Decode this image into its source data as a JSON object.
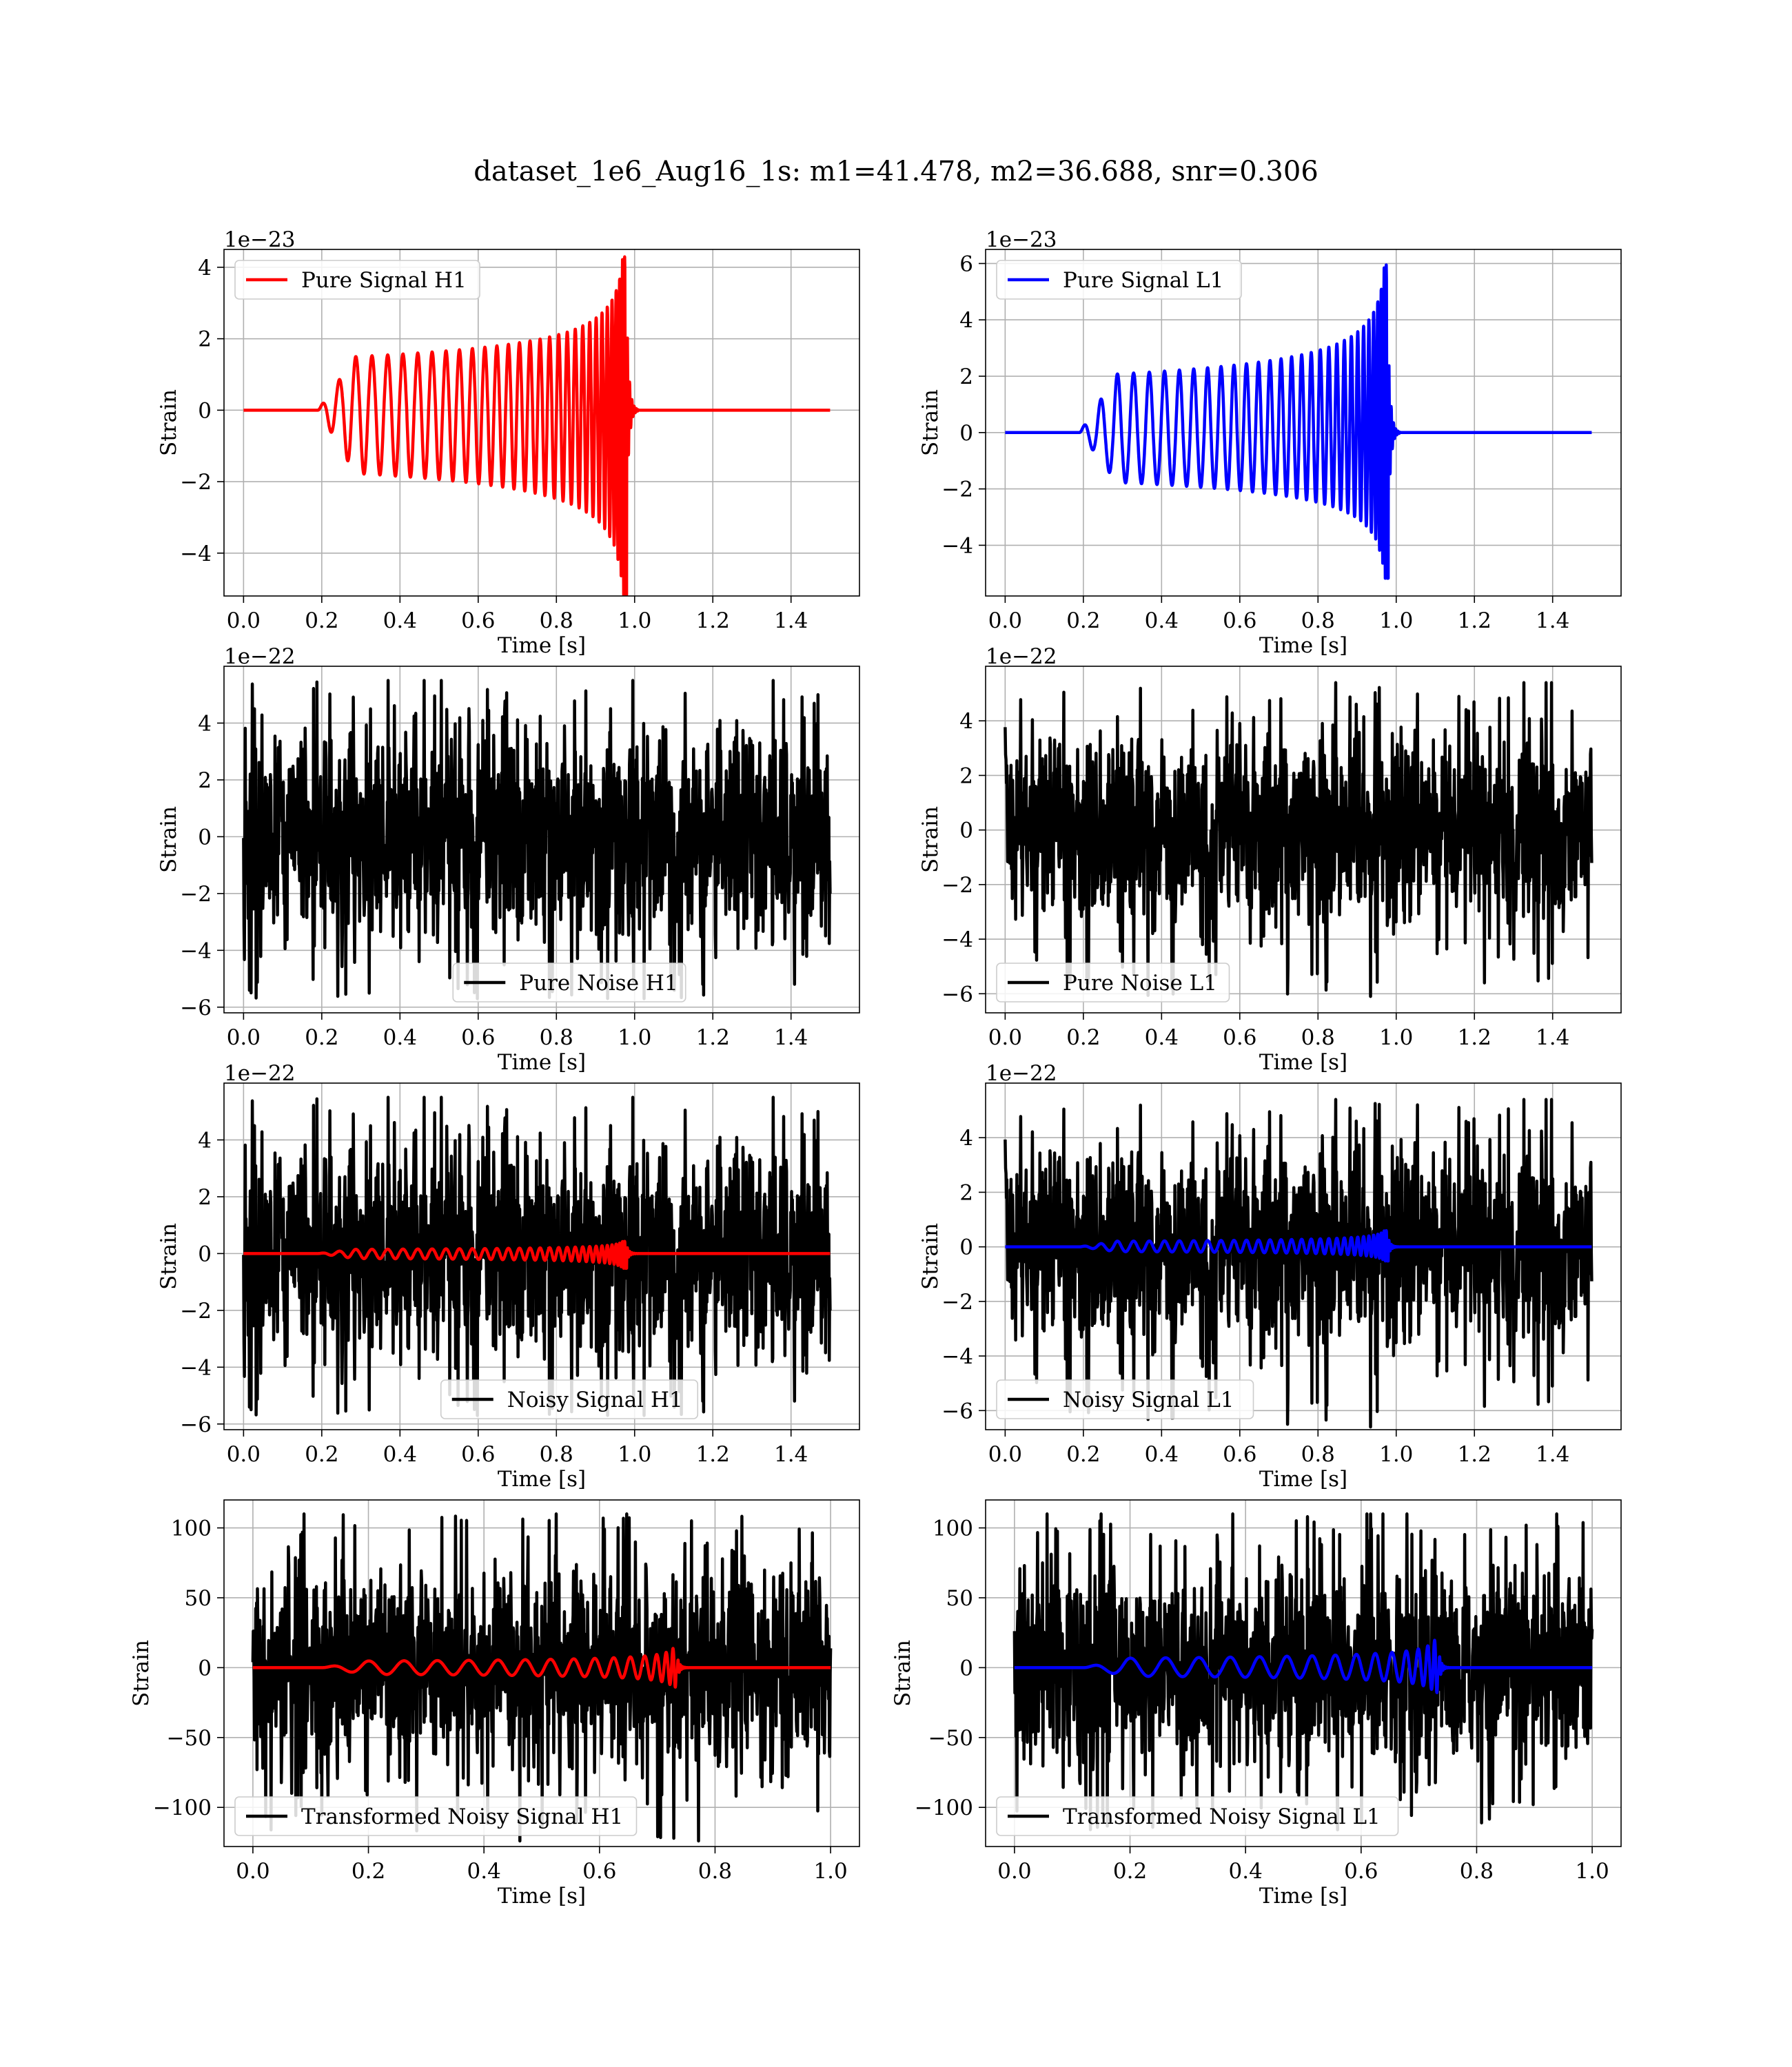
{
  "figure_title": "dataset_1e6_Aug16_1s: m1=41.478, m2=36.688, snr=0.306",
  "colors": {
    "h1": "#ff0000",
    "l1": "#0000ff",
    "noise": "#000000",
    "grid": "#b0b0b0"
  },
  "chart_data": [
    {
      "type": "line",
      "title": "",
      "xlabel": "Time [s]",
      "ylabel": "Strain",
      "offset_text": "1e−23",
      "xlim": [
        -0.05,
        1.575
      ],
      "ylim": [
        -5.2,
        4.5
      ],
      "xticks": [
        0.0,
        0.2,
        0.4,
        0.6,
        0.8,
        1.0,
        1.2,
        1.4
      ],
      "xtick_labels": [
        "0.0",
        "0.2",
        "0.4",
        "0.6",
        "0.8",
        "1.0",
        "1.2",
        "1.4"
      ],
      "yticks": [
        -4,
        -2,
        0,
        2,
        4
      ],
      "ytick_labels": [
        "−4",
        "−2",
        "0",
        "2",
        "4"
      ],
      "grid": true,
      "legend_position": "upper left",
      "series": [
        {
          "name": "Pure Signal H1",
          "color": "#ff0000",
          "kind": "chirp",
          "x_range": [
            0,
            1.5
          ],
          "amplitude_peak": 4.4,
          "amplitude_trough": -5.2,
          "merger_time": 0.98,
          "onset_time": 0.19,
          "seed": 11
        }
      ]
    },
    {
      "type": "line",
      "title": "",
      "xlabel": "Time [s]",
      "ylabel": "Strain",
      "offset_text": "1e−23",
      "xlim": [
        -0.05,
        1.575
      ],
      "ylim": [
        -5.8,
        6.5
      ],
      "xticks": [
        0.0,
        0.2,
        0.4,
        0.6,
        0.8,
        1.0,
        1.2,
        1.4
      ],
      "xtick_labels": [
        "0.0",
        "0.2",
        "0.4",
        "0.6",
        "0.8",
        "1.0",
        "1.2",
        "1.4"
      ],
      "yticks": [
        -4,
        -2,
        0,
        2,
        4,
        6
      ],
      "ytick_labels": [
        "−4",
        "−2",
        "0",
        "2",
        "4",
        "6"
      ],
      "grid": true,
      "legend_position": "upper left",
      "series": [
        {
          "name": "Pure Signal L1",
          "color": "#0000ff",
          "kind": "chirp",
          "x_range": [
            0,
            1.5
          ],
          "amplitude_peak": 6.1,
          "amplitude_trough": -5.2,
          "merger_time": 0.98,
          "onset_time": 0.19,
          "seed": 12
        }
      ]
    },
    {
      "type": "line",
      "title": "",
      "xlabel": "Time [s]",
      "ylabel": "Strain",
      "offset_text": "1e−22",
      "xlim": [
        -0.05,
        1.575
      ],
      "ylim": [
        -6.2,
        6.0
      ],
      "xticks": [
        0.0,
        0.2,
        0.4,
        0.6,
        0.8,
        1.0,
        1.2,
        1.4
      ],
      "xtick_labels": [
        "0.0",
        "0.2",
        "0.4",
        "0.6",
        "0.8",
        "1.0",
        "1.2",
        "1.4"
      ],
      "yticks": [
        -6,
        -4,
        -2,
        0,
        2,
        4
      ],
      "ytick_labels": [
        "−6",
        "−4",
        "−2",
        "0",
        "2",
        "4"
      ],
      "grid": true,
      "legend_position": "lower center",
      "series": [
        {
          "name": "Pure Noise H1",
          "color": "#000000",
          "kind": "noise",
          "x_range": [
            0,
            1.5
          ],
          "y_max": 5.5,
          "y_min": -5.7,
          "seed": 21
        }
      ]
    },
    {
      "type": "line",
      "title": "",
      "xlabel": "Time [s]",
      "ylabel": "Strain",
      "offset_text": "1e−22",
      "xlim": [
        -0.05,
        1.575
      ],
      "ylim": [
        -6.7,
        6.0
      ],
      "xticks": [
        0.0,
        0.2,
        0.4,
        0.6,
        0.8,
        1.0,
        1.2,
        1.4
      ],
      "xtick_labels": [
        "0.0",
        "0.2",
        "0.4",
        "0.6",
        "0.8",
        "1.0",
        "1.2",
        "1.4"
      ],
      "yticks": [
        -6,
        -4,
        -2,
        0,
        2,
        4
      ],
      "ytick_labels": [
        "−6",
        "−4",
        "−2",
        "0",
        "2",
        "4"
      ],
      "grid": true,
      "legend_position": "lower left",
      "series": [
        {
          "name": "Pure Noise L1",
          "color": "#000000",
          "kind": "noise",
          "x_range": [
            0,
            1.5
          ],
          "y_max": 5.4,
          "y_min": -6.1,
          "seed": 22
        }
      ]
    },
    {
      "type": "line",
      "title": "",
      "xlabel": "Time [s]",
      "ylabel": "Strain",
      "offset_text": "1e−22",
      "xlim": [
        -0.05,
        1.575
      ],
      "ylim": [
        -6.2,
        6.0
      ],
      "xticks": [
        0.0,
        0.2,
        0.4,
        0.6,
        0.8,
        1.0,
        1.2,
        1.4
      ],
      "xtick_labels": [
        "0.0",
        "0.2",
        "0.4",
        "0.6",
        "0.8",
        "1.0",
        "1.2",
        "1.4"
      ],
      "yticks": [
        -6,
        -4,
        -2,
        0,
        2,
        4
      ],
      "ytick_labels": [
        "−6",
        "−4",
        "−2",
        "0",
        "2",
        "4"
      ],
      "grid": true,
      "legend_position": "lower center",
      "series": [
        {
          "name": "Noisy Signal H1",
          "color": "#000000",
          "kind": "noise",
          "x_range": [
            0,
            1.5
          ],
          "y_max": 5.5,
          "y_min": -5.7,
          "seed": 21
        },
        {
          "name": "",
          "color": "#ff0000",
          "kind": "chirp",
          "x_range": [
            0,
            1.5
          ],
          "amplitude_peak": 0.44,
          "amplitude_trough": -0.52,
          "merger_time": 0.98,
          "onset_time": 0.19,
          "seed": 31
        }
      ]
    },
    {
      "type": "line",
      "title": "",
      "xlabel": "Time [s]",
      "ylabel": "Strain",
      "offset_text": "1e−22",
      "xlim": [
        -0.05,
        1.575
      ],
      "ylim": [
        -6.7,
        6.0
      ],
      "xticks": [
        0.0,
        0.2,
        0.4,
        0.6,
        0.8,
        1.0,
        1.2,
        1.4
      ],
      "xtick_labels": [
        "0.0",
        "0.2",
        "0.4",
        "0.6",
        "0.8",
        "1.0",
        "1.2",
        "1.4"
      ],
      "yticks": [
        -6,
        -4,
        -2,
        0,
        2,
        4
      ],
      "ytick_labels": [
        "−6",
        "−4",
        "−2",
        "0",
        "2",
        "4"
      ],
      "grid": true,
      "legend_position": "lower left",
      "series": [
        {
          "name": "Noisy Signal L1",
          "color": "#000000",
          "kind": "noise",
          "x_range": [
            0,
            1.5
          ],
          "y_max": 5.4,
          "y_min": -6.6,
          "seed": 22
        },
        {
          "name": "",
          "color": "#0000ff",
          "kind": "chirp",
          "x_range": [
            0,
            1.5
          ],
          "amplitude_peak": 0.61,
          "amplitude_trough": -0.52,
          "merger_time": 0.98,
          "onset_time": 0.19,
          "seed": 32
        }
      ]
    },
    {
      "type": "line",
      "title": "",
      "xlabel": "Time [s]",
      "ylabel": "Strain",
      "offset_text": "",
      "xlim": [
        -0.05,
        1.05
      ],
      "ylim": [
        -128,
        120
      ],
      "xticks": [
        0.0,
        0.2,
        0.4,
        0.6,
        0.8,
        1.0
      ],
      "xtick_labels": [
        "0.0",
        "0.2",
        "0.4",
        "0.6",
        "0.8",
        "1.0"
      ],
      "yticks": [
        -100,
        -50,
        0,
        50,
        100
      ],
      "ytick_labels": [
        "−100",
        "−50",
        "0",
        "50",
        "100"
      ],
      "grid": true,
      "legend_position": "lower left",
      "series": [
        {
          "name": "Transformed Noisy Signal H1",
          "color": "#000000",
          "kind": "noise",
          "x_range": [
            0,
            1.0
          ],
          "y_max": 110,
          "y_min": -124,
          "seed": 41
        },
        {
          "name": "",
          "color": "#ff0000",
          "kind": "chirp",
          "x_range": [
            0,
            1.0
          ],
          "amplitude_peak": 14,
          "amplitude_trough": -14,
          "merger_time": 0.735,
          "onset_time": 0.12,
          "seed": 51
        }
      ]
    },
    {
      "type": "line",
      "title": "",
      "xlabel": "Time [s]",
      "ylabel": "Strain",
      "offset_text": "",
      "xlim": [
        -0.05,
        1.05
      ],
      "ylim": [
        -128,
        120
      ],
      "xticks": [
        0.0,
        0.2,
        0.4,
        0.6,
        0.8,
        1.0
      ],
      "xtick_labels": [
        "0.0",
        "0.2",
        "0.4",
        "0.6",
        "0.8",
        "1.0"
      ],
      "yticks": [
        -100,
        -50,
        0,
        50,
        100
      ],
      "ytick_labels": [
        "−100",
        "−50",
        "0",
        "50",
        "100"
      ],
      "grid": true,
      "legend_position": "lower left",
      "series": [
        {
          "name": "Transformed Noisy Signal L1",
          "color": "#000000",
          "kind": "noise",
          "x_range": [
            0,
            1.0
          ],
          "y_max": 110,
          "y_min": -116,
          "seed": 42
        },
        {
          "name": "",
          "color": "#0000ff",
          "kind": "chirp",
          "x_range": [
            0,
            1.0
          ],
          "amplitude_peak": 20,
          "amplitude_trough": -18,
          "merger_time": 0.735,
          "onset_time": 0.12,
          "seed": 52
        }
      ]
    }
  ]
}
